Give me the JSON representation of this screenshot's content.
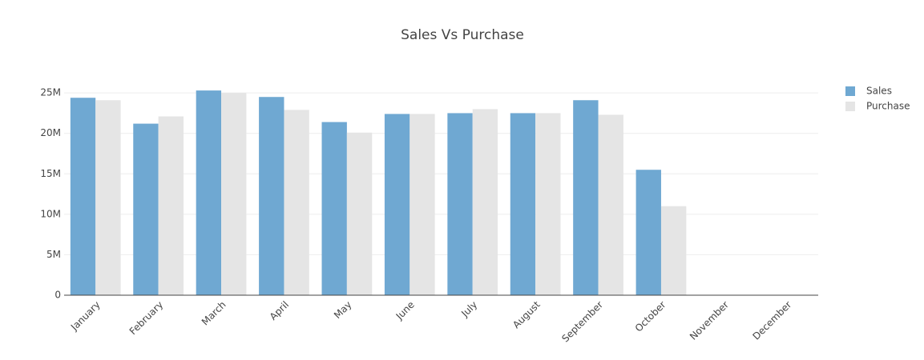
{
  "chart_data": {
    "type": "bar",
    "title": "Sales Vs Purchase",
    "categories": [
      "January",
      "February",
      "March",
      "April",
      "May",
      "June",
      "July",
      "August",
      "September",
      "October",
      "November",
      "December"
    ],
    "series": [
      {
        "name": "Sales",
        "color": "#6fa8d2",
        "values": [
          24400000,
          21200000,
          25300000,
          24500000,
          21400000,
          22400000,
          22500000,
          22500000,
          24100000,
          15500000,
          null,
          null
        ]
      },
      {
        "name": "Purchase",
        "color": "#e5e5e5",
        "values": [
          24100000,
          22100000,
          25000000,
          22900000,
          20100000,
          22400000,
          23000000,
          22500000,
          22300000,
          11000000,
          null,
          null
        ]
      }
    ],
    "ylim": [
      0,
      26300000
    ],
    "yticks": [
      0,
      {
        "value": 5000000,
        "label": "5M"
      },
      {
        "value": 10000000,
        "label": "10M"
      },
      {
        "value": 15000000,
        "label": "15M"
      },
      {
        "value": 20000000,
        "label": "20M"
      },
      {
        "value": 25000000,
        "label": "25M"
      }
    ],
    "grid": true,
    "legend": "right"
  }
}
